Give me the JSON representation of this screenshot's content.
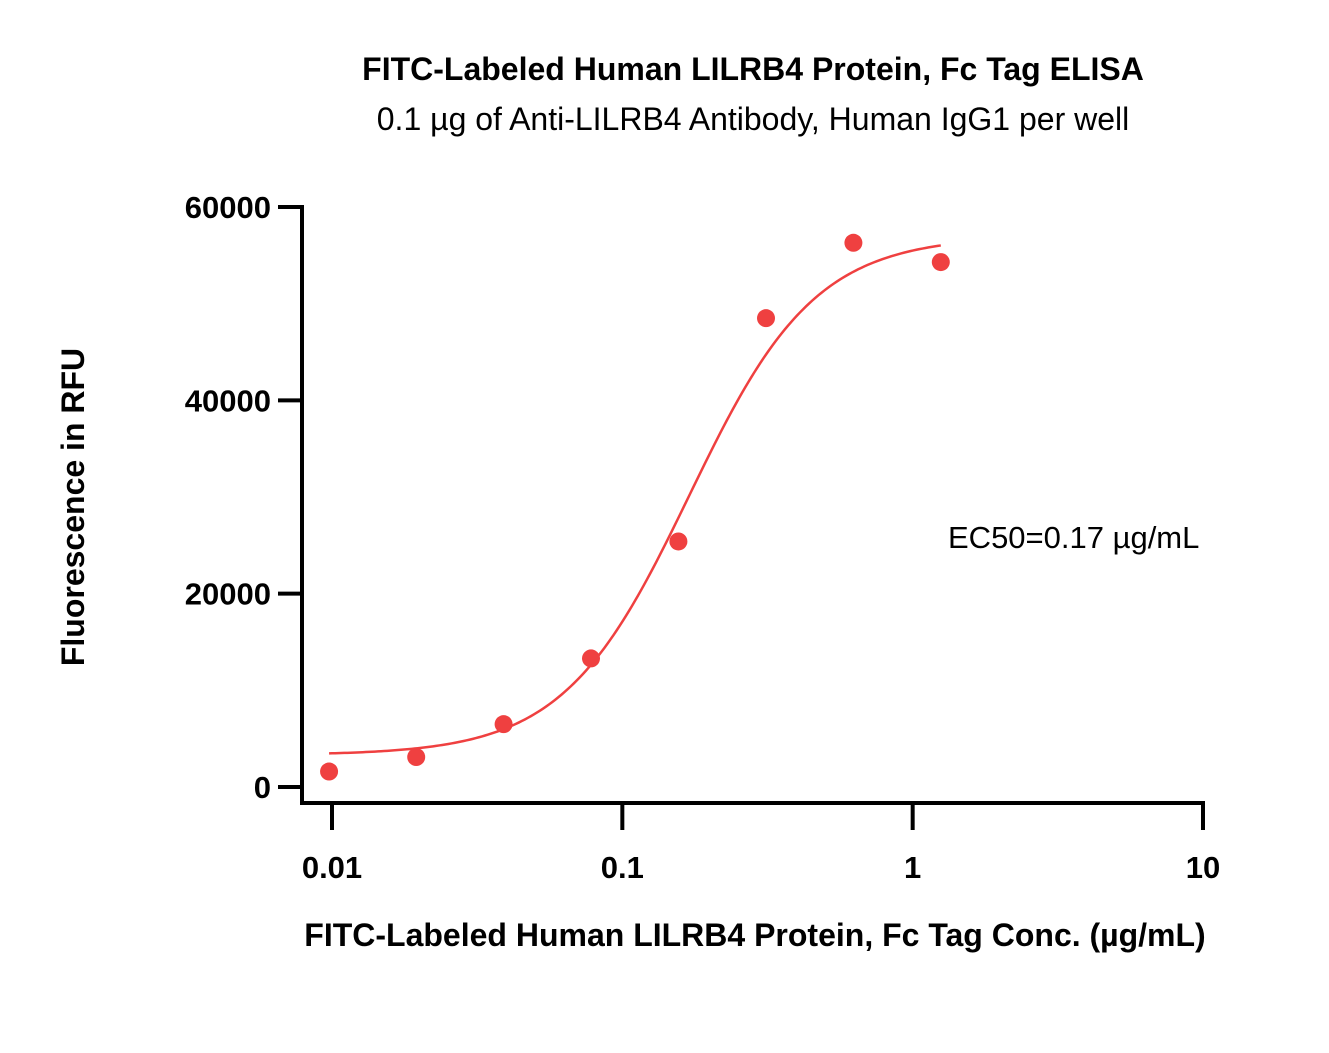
{
  "chart_data": {
    "type": "scatter",
    "title": "FITC-Labeled Human LILRB4 Protein, Fc Tag ELISA",
    "subtitle": "0.1 µg of Anti-LILRB4 Antibody, Human IgG1 per well",
    "xlabel": "FITC-Labeled Human LILRB4 Protein, Fc Tag Conc. (µg/mL)",
    "ylabel": "Fluorescence in RFU",
    "x_scale": "log",
    "xlim": [
      0.008,
      10
    ],
    "ylim": [
      -1500,
      60000
    ],
    "x_ticks": [
      0.01,
      0.1,
      1,
      10
    ],
    "x_tick_labels": [
      "0.01",
      "0.1",
      "1",
      "10"
    ],
    "y_ticks": [
      0,
      20000,
      40000,
      60000
    ],
    "y_tick_labels": [
      "0",
      "20000",
      "40000",
      "60000"
    ],
    "grid": false,
    "color": "#ef4040",
    "series": [
      {
        "points": [
          {
            "x": 0.00977,
            "y": 1600
          },
          {
            "x": 0.0195,
            "y": 3100
          },
          {
            "x": 0.039,
            "y": 6500
          },
          {
            "x": 0.078,
            "y": 13300
          },
          {
            "x": 0.156,
            "y": 25400
          },
          {
            "x": 0.3125,
            "y": 48500
          },
          {
            "x": 0.625,
            "y": 56300
          },
          {
            "x": 1.25,
            "y": 54300
          }
        ],
        "fit": {
          "model": "4PL",
          "bottom": 3300,
          "top": 57000,
          "ec50": 0.17,
          "hill": 2.0,
          "x_range": [
            0.00977,
            1.25
          ]
        }
      }
    ],
    "annotations": [
      {
        "text": "EC50=0.17 µg/mL"
      }
    ]
  }
}
